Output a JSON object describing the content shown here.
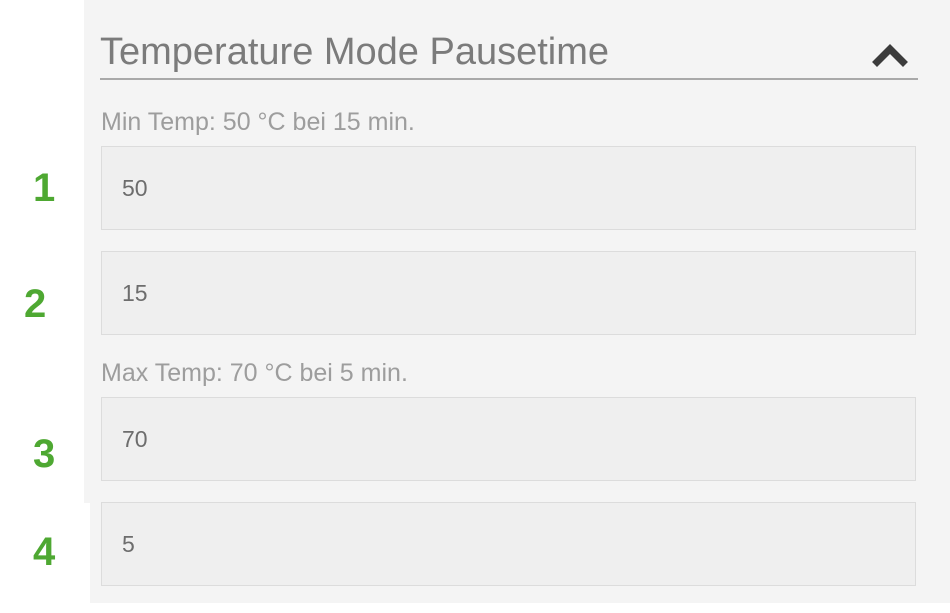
{
  "section": {
    "title": "Temperature Mode Pausetime",
    "collapse_icon": "chevron-up-icon"
  },
  "min_group": {
    "label": "Min Temp: 50 °C bei 15 min.",
    "temperature_value": "50",
    "time_value": "15"
  },
  "max_group": {
    "label": "Max Temp: 70 °C bei 5 min.",
    "temperature_value": "70",
    "time_value": "5"
  },
  "markers": [
    "1",
    "2",
    "3",
    "4"
  ],
  "colors": {
    "marker": "#4ea832",
    "panel_background": "#f4f4f4",
    "field_background": "#efefef",
    "title_text": "#7b7b7b"
  }
}
